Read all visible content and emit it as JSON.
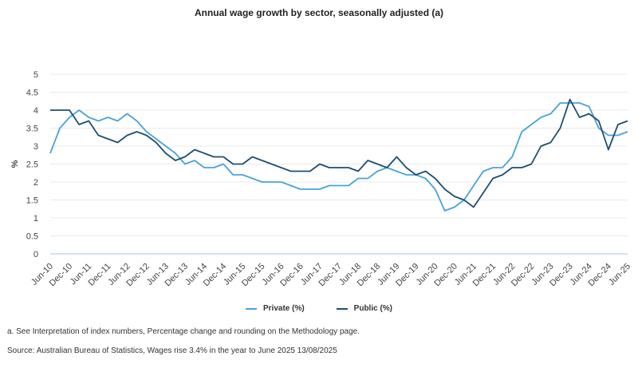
{
  "chart_data": {
    "type": "line",
    "title": "Annual wage growth by sector, seasonally adjusted (a)",
    "xlabel": "",
    "ylabel": "%",
    "ylim": [
      0,
      5
    ],
    "yticks": [
      "0",
      "0.5",
      "1",
      "1.5",
      "2",
      "2.5",
      "3",
      "3.5",
      "4",
      "4.5",
      "5"
    ],
    "grid": true,
    "legend_placement": "bottom",
    "x_tick_labels": [
      "Jun-10",
      "Dec-10",
      "Jun-11",
      "Dec-11",
      "Jun-12",
      "Dec-12",
      "Jun-13",
      "Dec-13",
      "Jun-14",
      "Dec-14",
      "Jun-15",
      "Dec-15",
      "Jun-16",
      "Dec-16",
      "Jun-17",
      "Dec-17",
      "Jun-18",
      "Dec-18",
      "Jun-19",
      "Dec-19",
      "Jun-20",
      "Dec-20",
      "Jun-21",
      "Dec-21",
      "Jun-22",
      "Dec-22",
      "Jun-23",
      "Dec-23",
      "Jun-24",
      "Dec-24",
      "Jun-25"
    ],
    "x_frequency": "quarterly",
    "series": [
      {
        "name": "Private (%)",
        "color": "#4aa3d9",
        "values": [
          2.8,
          3.5,
          3.8,
          4.0,
          3.8,
          3.7,
          3.8,
          3.7,
          3.9,
          3.7,
          3.4,
          3.2,
          3.0,
          2.8,
          2.5,
          2.6,
          2.4,
          2.4,
          2.5,
          2.2,
          2.2,
          2.1,
          2.0,
          2.0,
          2.0,
          1.9,
          1.8,
          1.8,
          1.8,
          1.9,
          1.9,
          1.9,
          2.1,
          2.1,
          2.3,
          2.4,
          2.3,
          2.2,
          2.2,
          2.1,
          1.8,
          1.2,
          1.3,
          1.5,
          1.9,
          2.3,
          2.4,
          2.4,
          2.7,
          3.4,
          3.6,
          3.8,
          3.9,
          4.2,
          4.2,
          4.2,
          4.1,
          3.5,
          3.3,
          3.3,
          3.4
        ]
      },
      {
        "name": "Public (%)",
        "color": "#1d4f70",
        "values": [
          4.0,
          4.0,
          4.0,
          3.6,
          3.7,
          3.3,
          3.2,
          3.1,
          3.3,
          3.4,
          3.3,
          3.1,
          2.8,
          2.6,
          2.7,
          2.9,
          2.8,
          2.7,
          2.7,
          2.5,
          2.5,
          2.7,
          2.6,
          2.5,
          2.4,
          2.3,
          2.3,
          2.3,
          2.5,
          2.4,
          2.4,
          2.4,
          2.3,
          2.6,
          2.5,
          2.4,
          2.7,
          2.4,
          2.2,
          2.3,
          2.1,
          1.8,
          1.6,
          1.5,
          1.3,
          1.7,
          2.1,
          2.2,
          2.4,
          2.4,
          2.5,
          3.0,
          3.1,
          3.5,
          4.3,
          3.8,
          3.9,
          3.7,
          2.9,
          3.6,
          3.7
        ]
      }
    ]
  },
  "footnotes": {
    "a": "a. See Interpretation of index numbers, Percentage change and rounding on the Methodology page.",
    "source": "Source: Australian Bureau of Statistics, Wages rise 3.4% in the year to June 2025 13/08/2025"
  }
}
